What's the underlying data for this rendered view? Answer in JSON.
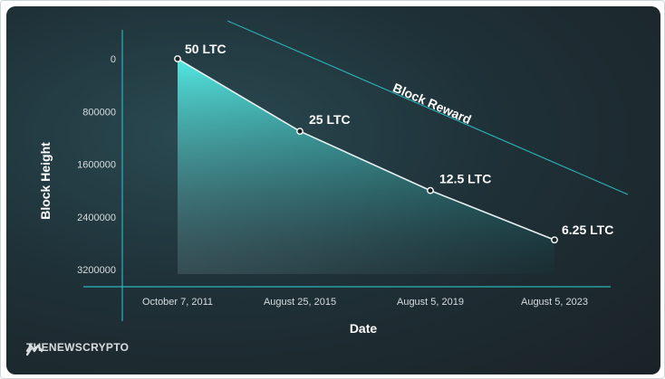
{
  "chart_data": {
    "type": "line",
    "xlabel": "Date",
    "ylabel": "Block Height",
    "categories": [
      "October 7, 2011",
      "August 25, 2015",
      "August 5, 2019",
      "August 5, 2023"
    ],
    "y_ticks": [
      "0",
      "800000",
      "1600000",
      "2400000",
      "3200000"
    ],
    "ylim": [
      0,
      3200000
    ],
    "y_inverted": true,
    "points": [
      {
        "x": "October 7, 2011",
        "y": 0,
        "label": "50 LTC"
      },
      {
        "x": "August 25, 2015",
        "y": 1100000,
        "label": "25 LTC"
      },
      {
        "x": "August 5, 2019",
        "y": 2000000,
        "label": "12.5 LTC"
      },
      {
        "x": "August 5, 2023",
        "y": 2750000,
        "label": "6.25 LTC"
      }
    ],
    "annotation": "Block Reward",
    "colors": {
      "line": "#e8f0f2",
      "fill_top": "#40e6df",
      "fill_bottom": "#1c5a60",
      "axis": "#2bb3b8",
      "text": "#ffffff",
      "tick_text": "#d6dcdf"
    }
  },
  "brand": {
    "name": "THENEWSCRYPTO",
    "icon": "wave-logo-icon"
  }
}
